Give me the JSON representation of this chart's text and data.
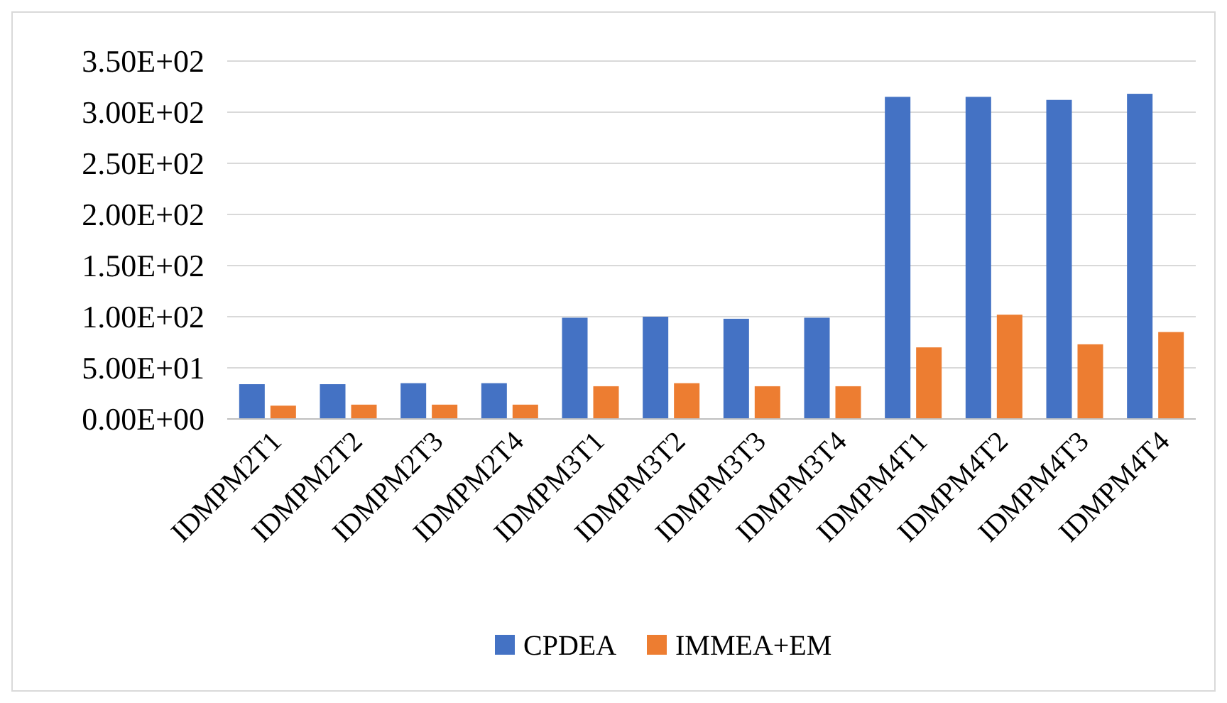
{
  "chart_data": {
    "type": "bar",
    "categories": [
      "IDMPM2T1",
      "IDMPM2T2",
      "IDMPM2T3",
      "IDMPM2T4",
      "IDMPM3T1",
      "IDMPM3T2",
      "IDMPM3T3",
      "IDMPM3T4",
      "IDMPM4T1",
      "IDMPM4T2",
      "IDMPM4T3",
      "IDMPM4T4"
    ],
    "series": [
      {
        "name": "CPDEA",
        "color": "#4472c4",
        "values": [
          34,
          34,
          35,
          35,
          99,
          100,
          98,
          99,
          315,
          315,
          312,
          318
        ]
      },
      {
        "name": "IMMEA+EM",
        "color": "#ed7d31",
        "values": [
          13,
          14,
          14,
          14,
          32,
          35,
          32,
          32,
          70,
          102,
          73,
          85
        ]
      }
    ],
    "ylim": [
      0,
      350
    ],
    "yticks": [
      {
        "value": 0,
        "label": "0.00E+00"
      },
      {
        "value": 50,
        "label": "5.00E+01"
      },
      {
        "value": 100,
        "label": "1.00E+02"
      },
      {
        "value": 150,
        "label": "1.50E+02"
      },
      {
        "value": 200,
        "label": "2.00E+02"
      },
      {
        "value": 250,
        "label": "2.50E+02"
      },
      {
        "value": 300,
        "label": "3.00E+02"
      },
      {
        "value": 350,
        "label": "3.50E+02"
      }
    ],
    "grid": "y",
    "legend": "bottom"
  }
}
